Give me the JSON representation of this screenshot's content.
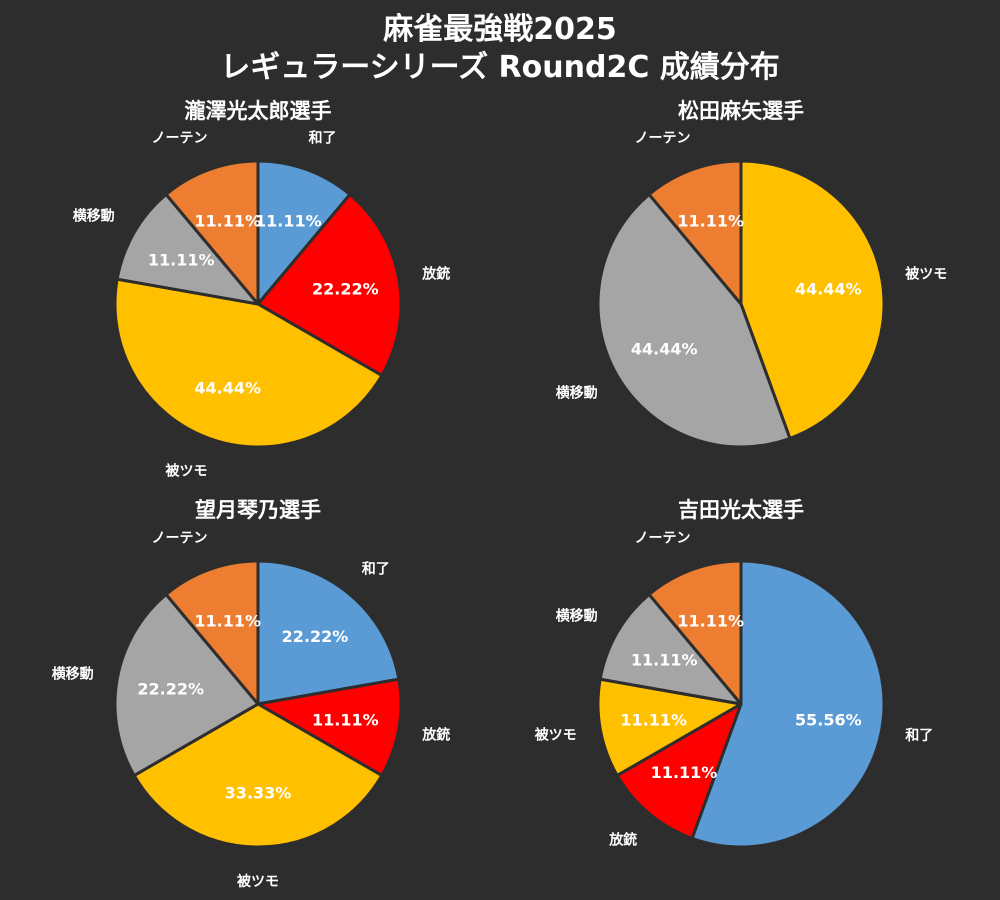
{
  "title_line1": "麻雀最強戦2025",
  "title_line2": "レギュラーシリーズ Round2C 成績分布",
  "colors": {
    "和了": "#5b9bd5",
    "放銃": "#ff0000",
    "被ツモ": "#ffc000",
    "横移動": "#a5a5a5",
    "ノーテン": "#ed7d31",
    "background": "#2d2d2d",
    "edge": "#2d2d2d"
  },
  "chart_data": [
    {
      "type": "pie",
      "title": "瀧澤光太郎選手",
      "slices": [
        {
          "label": "和了",
          "value": 11.11,
          "value_label": "11.11%"
        },
        {
          "label": "放銃",
          "value": 22.22,
          "value_label": "22.22%"
        },
        {
          "label": "被ツモ",
          "value": 44.44,
          "value_label": "44.44%"
        },
        {
          "label": "横移動",
          "value": 11.11,
          "value_label": "11.11%"
        },
        {
          "label": "ノーテン",
          "value": 11.11,
          "value_label": "11.11%"
        }
      ]
    },
    {
      "type": "pie",
      "title": "松田麻矢選手",
      "slices": [
        {
          "label": "被ツモ",
          "value": 44.44,
          "value_label": "44.44%"
        },
        {
          "label": "横移動",
          "value": 44.44,
          "value_label": "44.44%"
        },
        {
          "label": "ノーテン",
          "value": 11.11,
          "value_label": "11.11%"
        }
      ]
    },
    {
      "type": "pie",
      "title": "望月琴乃選手",
      "slices": [
        {
          "label": "和了",
          "value": 22.22,
          "value_label": "22.22%"
        },
        {
          "label": "放銃",
          "value": 11.11,
          "value_label": "11.11%"
        },
        {
          "label": "被ツモ",
          "value": 33.33,
          "value_label": "33.33%"
        },
        {
          "label": "横移動",
          "value": 22.22,
          "value_label": "22.22%"
        },
        {
          "label": "ノーテン",
          "value": 11.11,
          "value_label": "11.11%"
        }
      ]
    },
    {
      "type": "pie",
      "title": "吉田光太選手",
      "slices": [
        {
          "label": "和了",
          "value": 55.56,
          "value_label": "55.56%"
        },
        {
          "label": "放銃",
          "value": 11.11,
          "value_label": "11.11%"
        },
        {
          "label": "被ツモ",
          "value": 11.11,
          "value_label": "11.11%"
        },
        {
          "label": "横移動",
          "value": 11.11,
          "value_label": "11.11%"
        },
        {
          "label": "ノーテン",
          "value": 11.11,
          "value_label": "11.11%"
        }
      ]
    }
  ]
}
